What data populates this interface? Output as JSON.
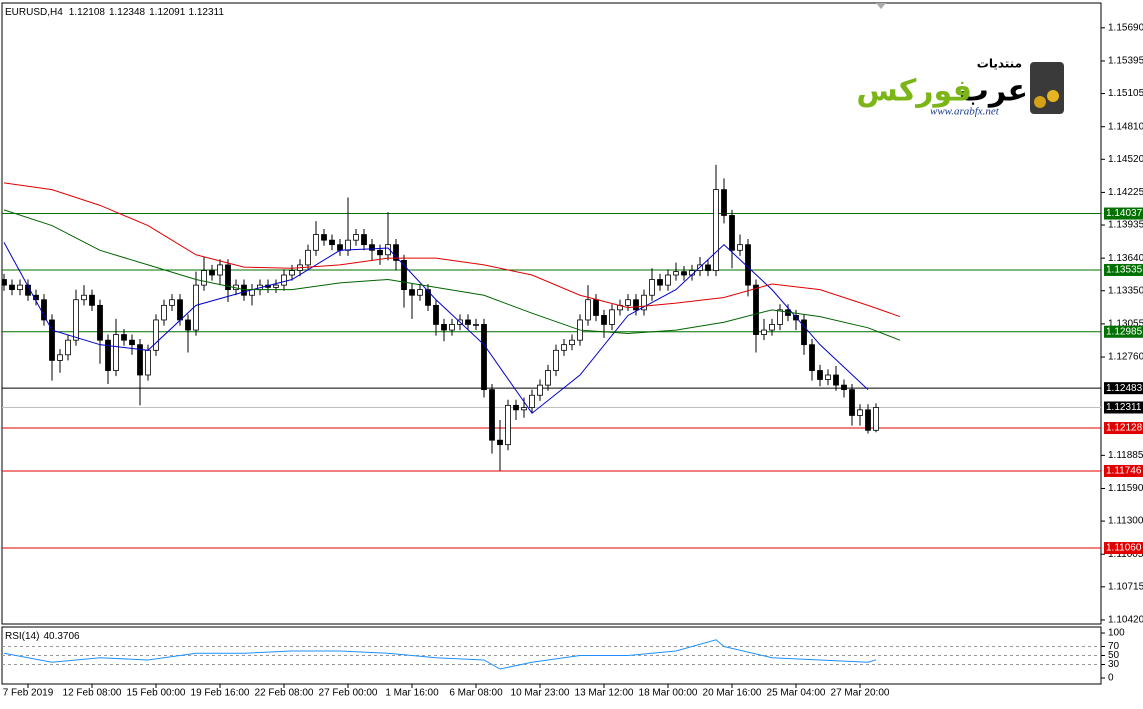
{
  "chart_data": {
    "type": "candlestick",
    "symbol": "EURUSD,H4",
    "up_color": "#ffffff",
    "down_color": "#000000",
    "wick_color": "#000000",
    "categories": [
      null,
      null,
      null,
      "7 Feb 2019",
      null,
      null,
      null,
      null,
      null,
      null,
      null,
      "12 Feb 08:00",
      null,
      null,
      null,
      null,
      null,
      null,
      null,
      "15 Feb 00:00",
      null,
      null,
      null,
      null,
      null,
      null,
      null,
      "19 Feb 16:00",
      null,
      null,
      null,
      null,
      null,
      null,
      null,
      "22 Feb 08:00",
      null,
      null,
      null,
      null,
      null,
      null,
      null,
      "27 Feb 00:00",
      null,
      null,
      null,
      null,
      null,
      null,
      null,
      "1 Mar 16:00",
      null,
      null,
      null,
      null,
      null,
      null,
      null,
      "6 Mar 08:00",
      null,
      null,
      null,
      null,
      null,
      null,
      null,
      "10 Mar 23:00",
      null,
      null,
      null,
      null,
      null,
      null,
      null,
      "13 Mar 12:00",
      null,
      null,
      null,
      null,
      null,
      null,
      null,
      "18 Mar 00:00",
      null,
      null,
      null,
      null,
      null,
      null,
      null,
      "20 Mar 16:00",
      null,
      null,
      null,
      null,
      null,
      null,
      null,
      "25 Mar 04:00",
      null,
      null,
      null,
      null,
      null,
      null,
      null,
      "27 Mar 20:00",
      null,
      null
    ],
    "open": [
      1.1345,
      1.134,
      1.1336,
      1.134,
      1.1331,
      1.1327,
      1.1309,
      1.1273,
      1.1278,
      1.1291,
      1.1327,
      1.1331,
      1.1322,
      1.1291,
      1.1264,
      1.1296,
      1.1291,
      1.1287,
      1.126,
      1.1282,
      1.1309,
      1.1322,
      1.1327,
      1.1309,
      1.13,
      1.134,
      1.1353,
      1.1349,
      1.1358,
      1.1336,
      1.134,
      1.1331,
      1.1336,
      1.134,
      1.1338,
      1.134,
      1.1349,
      1.1353,
      1.1358,
      1.1371,
      1.1385,
      1.138,
      1.1376,
      1.1371,
      1.138,
      1.1385,
      1.1376,
      1.1371,
      1.1367,
      1.1376,
      1.1362,
      1.1336,
      1.1331,
      1.1336,
      1.1322,
      1.1305,
      1.13,
      1.1305,
      1.1309,
      1.1305,
      1.1305,
      1.1247,
      1.1202,
      1.1198,
      1.1233,
      1.1229,
      1.1231,
      1.1242,
      1.1251,
      1.1264,
      1.1282,
      1.1287,
      1.1291,
      1.1309,
      1.1327,
      1.1313,
      1.1305,
      1.1318,
      1.1322,
      1.1327,
      1.1318,
      1.1331,
      1.1345,
      1.134,
      1.1349,
      1.1352,
      1.1349,
      1.1353,
      1.1358,
      1.1353,
      1.1425,
      1.1402,
      1.1371,
      1.1376,
      1.134,
      1.1296,
      1.13,
      1.1305,
      1.1318,
      1.1313,
      1.1309,
      1.1287,
      1.1264,
      1.1256,
      1.126,
      1.1251,
      1.1247,
      1.1224,
      1.1229,
      1.12108
    ],
    "high": [
      1.135,
      1.1345,
      1.1345,
      1.1345,
      1.1336,
      1.1332,
      1.1314,
      1.1283,
      1.1296,
      1.1336,
      1.134,
      1.1336,
      1.1327,
      1.1296,
      1.131,
      1.1301,
      1.1296,
      1.1292,
      1.1287,
      1.1314,
      1.1327,
      1.1332,
      1.1332,
      1.1314,
      1.1352,
      1.1365,
      1.1358,
      1.1363,
      1.1363,
      1.1345,
      1.1345,
      1.1341,
      1.1345,
      1.1345,
      1.1345,
      1.1354,
      1.1358,
      1.1363,
      1.1376,
      1.1397,
      1.139,
      1.1385,
      1.1381,
      1.1418,
      1.139,
      1.139,
      1.1381,
      1.1376,
      1.1405,
      1.1381,
      1.1367,
      1.1341,
      1.1341,
      1.1341,
      1.1327,
      1.131,
      1.131,
      1.1314,
      1.1314,
      1.131,
      1.131,
      1.1252,
      1.122,
      1.1238,
      1.1238,
      1.124,
      1.1247,
      1.1256,
      1.1269,
      1.1287,
      1.1292,
      1.1296,
      1.1314,
      1.134,
      1.1332,
      1.1318,
      1.1323,
      1.1327,
      1.1332,
      1.1332,
      1.1336,
      1.1355,
      1.135,
      1.1354,
      1.136,
      1.1357,
      1.1358,
      1.1365,
      1.1363,
      1.1447,
      1.1435,
      1.1407,
      1.1385,
      1.1381,
      1.1345,
      1.131,
      1.131,
      1.1323,
      1.1323,
      1.1318,
      1.1314,
      1.1292,
      1.1269,
      1.1265,
      1.1268,
      1.1256,
      1.1252,
      1.1234,
      1.1234,
      1.12348
    ],
    "low": [
      1.1335,
      1.1331,
      1.1331,
      1.1326,
      1.1322,
      1.1304,
      1.1255,
      1.1262,
      1.1273,
      1.1286,
      1.1322,
      1.1317,
      1.127,
      1.1252,
      1.1259,
      1.1286,
      1.1278,
      1.1233,
      1.1255,
      1.1277,
      1.1304,
      1.1317,
      1.1304,
      1.128,
      1.1295,
      1.1335,
      1.1344,
      1.134,
      1.1325,
      1.1331,
      1.1326,
      1.1322,
      1.1331,
      1.1333,
      1.1333,
      1.1335,
      1.1344,
      1.1348,
      1.1353,
      1.1366,
      1.1375,
      1.1371,
      1.1366,
      1.1366,
      1.1375,
      1.1371,
      1.1362,
      1.1358,
      1.1362,
      1.1353,
      1.132,
      1.131,
      1.1326,
      1.1317,
      1.1295,
      1.129,
      1.1295,
      1.13,
      1.13,
      1.13,
      1.124,
      1.119,
      1.1175,
      1.1193,
      1.122,
      1.1222,
      1.1226,
      1.1237,
      1.1246,
      1.1259,
      1.1277,
      1.1282,
      1.1286,
      1.1304,
      1.1308,
      1.1293,
      1.13,
      1.1313,
      1.1317,
      1.1313,
      1.1313,
      1.1326,
      1.1335,
      1.1335,
      1.1344,
      1.1344,
      1.1344,
      1.1348,
      1.1348,
      1.1348,
      1.1395,
      1.1355,
      1.1366,
      1.133,
      1.128,
      1.1291,
      1.1295,
      1.13,
      1.1308,
      1.13,
      1.1278,
      1.1255,
      1.125,
      1.1251,
      1.1246,
      1.124,
      1.1215,
      1.1215,
      1.1208,
      1.12091
    ],
    "close": [
      1.134,
      1.1336,
      1.134,
      1.1331,
      1.1327,
      1.1309,
      1.1273,
      1.1278,
      1.1291,
      1.1327,
      1.1331,
      1.1322,
      1.1291,
      1.1264,
      1.1296,
      1.1291,
      1.1287,
      1.126,
      1.1282,
      1.1309,
      1.1322,
      1.1327,
      1.1309,
      1.13,
      1.134,
      1.1353,
      1.1349,
      1.1358,
      1.1336,
      1.134,
      1.1331,
      1.1336,
      1.134,
      1.1338,
      1.134,
      1.1349,
      1.1353,
      1.1358,
      1.1371,
      1.1385,
      1.138,
      1.1376,
      1.1371,
      1.138,
      1.1385,
      1.1376,
      1.1371,
      1.1367,
      1.1376,
      1.1362,
      1.1336,
      1.1331,
      1.1336,
      1.1322,
      1.1305,
      1.13,
      1.1305,
      1.1309,
      1.1305,
      1.1305,
      1.1247,
      1.1202,
      1.1198,
      1.1233,
      1.1229,
      1.1231,
      1.1242,
      1.1251,
      1.1264,
      1.1282,
      1.1287,
      1.1291,
      1.1309,
      1.1327,
      1.1313,
      1.1305,
      1.1318,
      1.1322,
      1.1327,
      1.1318,
      1.1331,
      1.1345,
      1.134,
      1.1349,
      1.1352,
      1.1349,
      1.1353,
      1.1358,
      1.1353,
      1.1425,
      1.1402,
      1.1371,
      1.1376,
      1.134,
      1.1296,
      1.13,
      1.1305,
      1.1318,
      1.1313,
      1.1309,
      1.1287,
      1.1264,
      1.1256,
      1.126,
      1.1251,
      1.1247,
      1.1224,
      1.1229,
      1.12108,
      1.12311
    ],
    "ylim": [
      1.10384,
      1.15902
    ],
    "yticks": [
      {
        "value": 1.1569,
        "label": "1.15690"
      },
      1.15395,
      1.15105,
      {
        "value": 1.1481,
        "label": "1.14810"
      },
      {
        "value": 1.1452,
        "label": "1.14520"
      },
      1.14225,
      1.13935,
      {
        "value": 1.1364,
        "label": "1.13640"
      },
      {
        "value": 1.1335,
        "label": "1.13350"
      },
      1.13055,
      {
        "value": 1.1276,
        "label": "1.12760"
      },
      1.11885,
      {
        "value": 1.1159,
        "label": "1.11590"
      },
      {
        "value": 1.113,
        "label": "1.11300"
      },
      1.11005,
      1.10715,
      {
        "value": 1.1042,
        "label": "1.10420"
      }
    ],
    "levels": [
      {
        "value": 1.14037,
        "color": "#007000"
      },
      {
        "value": 1.13535,
        "color": "#007000"
      },
      {
        "value": 1.12985,
        "color": "#007000"
      },
      {
        "value": 1.12483,
        "color": "#000000"
      },
      {
        "value": 1.12128,
        "color": "#e00000"
      },
      {
        "value": 1.11746,
        "color": "#e00000"
      },
      {
        "value": 1.1106,
        "label": "1.11060",
        "color": "#e00000"
      }
    ],
    "current_price_color": "#c0c0c0",
    "moving_averages": [
      {
        "color": "#0000cd",
        "x": [
          0,
          6,
          12,
          18,
          24,
          30,
          36,
          42,
          48,
          54,
          60,
          66,
          72,
          78,
          84,
          90,
          96,
          102,
          108
        ],
        "values": [
          1.1378,
          1.13,
          1.1287,
          1.1282,
          1.1322,
          1.1334,
          1.1345,
          1.1371,
          1.1373,
          1.1327,
          1.1287,
          1.1226,
          1.126,
          1.1313,
          1.1336,
          1.1376,
          1.1336,
          1.1287,
          1.1247
        ]
      },
      {
        "color": "#e00000",
        "x": [
          0,
          6,
          12,
          18,
          24,
          30,
          36,
          42,
          48,
          54,
          60,
          66,
          72,
          78,
          84,
          90,
          96,
          102,
          108,
          112
        ],
        "values": [
          1.1431,
          1.1425,
          1.1411,
          1.1393,
          1.1367,
          1.1356,
          1.1355,
          1.1358,
          1.1364,
          1.1364,
          1.1358,
          1.1349,
          1.1331,
          1.132,
          1.1324,
          1.1329,
          1.1341,
          1.1336,
          1.1322,
          1.1312
        ]
      },
      {
        "color": "#006400",
        "x": [
          0,
          6,
          12,
          18,
          24,
          30,
          36,
          42,
          48,
          54,
          60,
          66,
          72,
          78,
          84,
          90,
          96,
          102,
          108,
          112
        ],
        "values": [
          1.1407,
          1.1393,
          1.1371,
          1.1358,
          1.1345,
          1.1336,
          1.1336,
          1.1342,
          1.1345,
          1.1338,
          1.1331,
          1.1315,
          1.13,
          1.1297,
          1.13,
          1.1307,
          1.1318,
          1.1312,
          1.1302,
          1.1291
        ]
      }
    ],
    "rsi": {
      "name": "RSI(14)",
      "color": "#1e90ff",
      "ylim": [
        0,
        100
      ],
      "yticks": [
        100,
        70,
        50,
        30,
        0
      ],
      "x": [
        0,
        6,
        12,
        18,
        24,
        30,
        36,
        42,
        48,
        54,
        60,
        62,
        66,
        72,
        78,
        84,
        89,
        90,
        96,
        102,
        108,
        109
      ],
      "values": [
        55,
        35,
        45,
        40,
        55,
        55,
        60,
        60,
        55,
        45,
        40,
        20,
        35,
        50,
        50,
        60,
        85,
        70,
        45,
        40,
        35,
        40.3706
      ]
    }
  },
  "logo": {
    "forum": "منتديات",
    "brand_1": "عرب",
    "brand_2": "فوركس",
    "url": "www.arabfx.net"
  }
}
